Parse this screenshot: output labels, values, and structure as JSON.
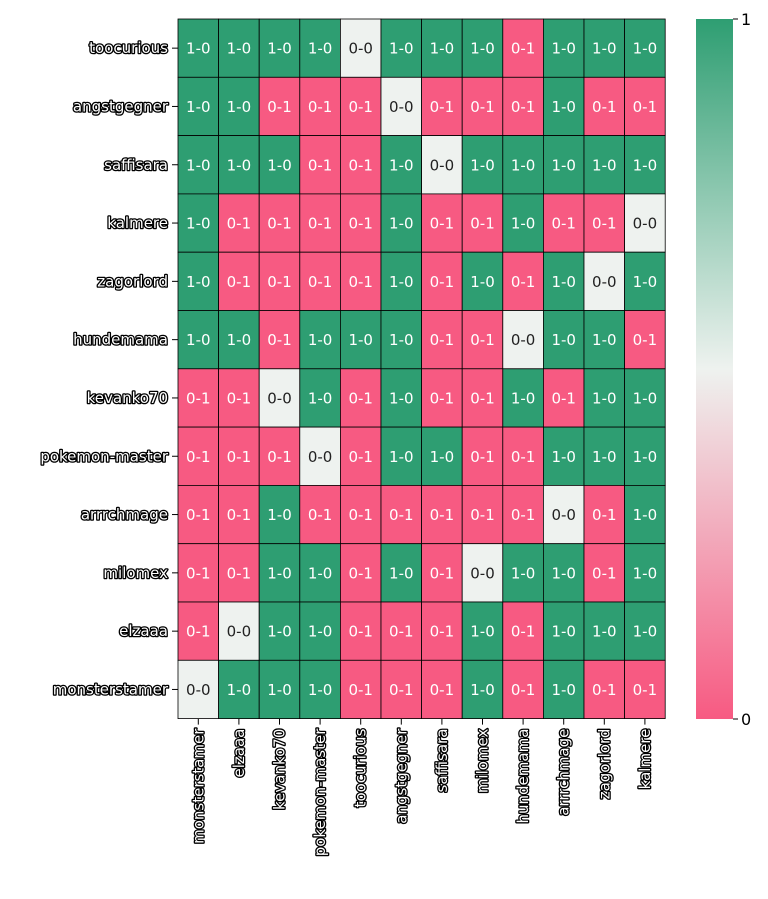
{
  "chart_data": {
    "type": "heatmap",
    "title": "",
    "xlabel": "",
    "ylabel": "",
    "rows": [
      "toocurious",
      "angstgegner",
      "saffisara",
      "kalmere",
      "zagorlord",
      "hundemama",
      "kevanko70",
      "pokemon-master",
      "arrrchmage",
      "milomex",
      "elzaaa",
      "monsterstamer"
    ],
    "columns": [
      "monsterstamer",
      "elzaaa",
      "kevanko70",
      "pokemon-master",
      "toocurious",
      "angstgegner",
      "saffisara",
      "milomex",
      "hundemama",
      "arrrchmage",
      "zagorlord",
      "kalmere"
    ],
    "labels": [
      [
        "1-0",
        "1-0",
        "1-0",
        "1-0",
        "0-0",
        "1-0",
        "1-0",
        "1-0",
        "0-1",
        "1-0",
        "1-0",
        "1-0"
      ],
      [
        "1-0",
        "1-0",
        "0-1",
        "0-1",
        "0-1",
        "0-0",
        "0-1",
        "0-1",
        "0-1",
        "1-0",
        "0-1",
        "0-1"
      ],
      [
        "1-0",
        "1-0",
        "1-0",
        "0-1",
        "0-1",
        "1-0",
        "0-0",
        "1-0",
        "1-0",
        "1-0",
        "1-0",
        "1-0"
      ],
      [
        "1-0",
        "0-1",
        "0-1",
        "0-1",
        "0-1",
        "1-0",
        "0-1",
        "0-1",
        "1-0",
        "0-1",
        "0-1",
        "0-0"
      ],
      [
        "1-0",
        "0-1",
        "0-1",
        "0-1",
        "0-1",
        "1-0",
        "0-1",
        "1-0",
        "0-1",
        "1-0",
        "0-0",
        "1-0"
      ],
      [
        "1-0",
        "1-0",
        "0-1",
        "1-0",
        "1-0",
        "1-0",
        "0-1",
        "0-1",
        "0-0",
        "1-0",
        "1-0",
        "0-1"
      ],
      [
        "0-1",
        "0-1",
        "0-0",
        "1-0",
        "0-1",
        "1-0",
        "0-1",
        "0-1",
        "1-0",
        "0-1",
        "1-0",
        "1-0"
      ],
      [
        "0-1",
        "0-1",
        "0-1",
        "0-0",
        "0-1",
        "1-0",
        "1-0",
        "0-1",
        "0-1",
        "1-0",
        "1-0",
        "1-0"
      ],
      [
        "0-1",
        "0-1",
        "1-0",
        "0-1",
        "0-1",
        "0-1",
        "0-1",
        "0-1",
        "0-1",
        "0-0",
        "0-1",
        "1-0"
      ],
      [
        "0-1",
        "0-1",
        "1-0",
        "1-0",
        "0-1",
        "1-0",
        "0-1",
        "0-0",
        "1-0",
        "1-0",
        "0-1",
        "1-0"
      ],
      [
        "0-1",
        "0-0",
        "1-0",
        "1-0",
        "0-1",
        "0-1",
        "0-1",
        "1-0",
        "0-1",
        "1-0",
        "1-0",
        "1-0"
      ],
      [
        "0-0",
        "1-0",
        "1-0",
        "1-0",
        "0-1",
        "0-1",
        "0-1",
        "1-0",
        "0-1",
        "1-0",
        "0-1",
        "0-1"
      ]
    ],
    "value_map": {
      "1-0": 1,
      "0-0": 0.5,
      "0-1": 0
    },
    "colorbar": {
      "min": 0,
      "max": 1,
      "ticks": [
        "0",
        "1"
      ]
    },
    "colors": {
      "high": "#2e9e72",
      "mid": "#eef2ef",
      "low": "#f75a82",
      "grid": "#000000",
      "text_dark": "#222222",
      "text_light": "#ffffff"
    },
    "grid": true,
    "legend": "colorbar-right"
  }
}
